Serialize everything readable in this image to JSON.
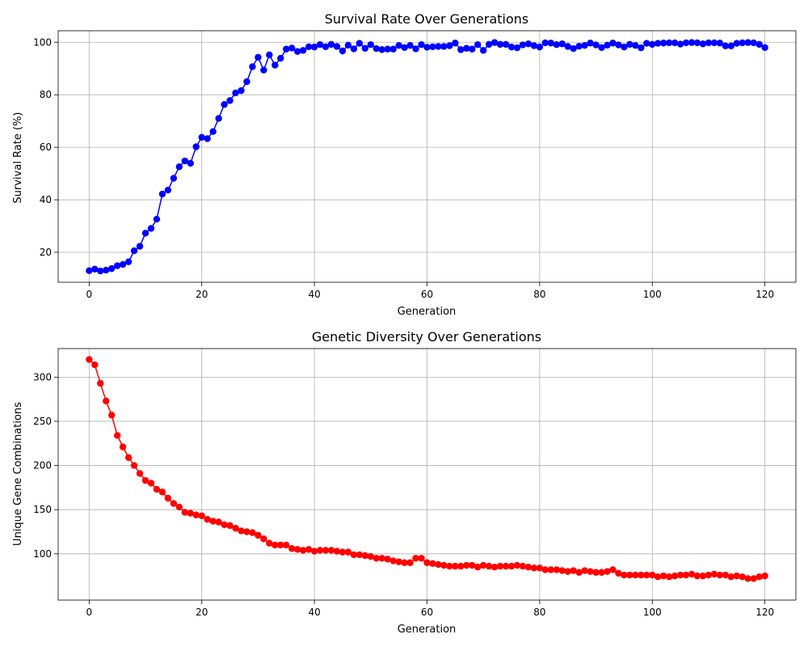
{
  "chart_data": [
    {
      "type": "line",
      "title": "Survival Rate Over Generations",
      "xlabel": "Generation",
      "ylabel": "Survival Rate (%)",
      "xlim": [
        -5.5,
        125.5
      ],
      "ylim": [
        8.6,
        104.4
      ],
      "xticks": [
        0,
        20,
        40,
        60,
        80,
        100,
        120
      ],
      "yticks": [
        20,
        40,
        60,
        80,
        100
      ],
      "grid": true,
      "color": "#0000ff",
      "x_start": 0,
      "x_step": 1,
      "values": [
        13.0,
        13.6,
        12.9,
        13.2,
        13.8,
        14.9,
        15.4,
        16.4,
        20.6,
        22.3,
        27.3,
        29.1,
        32.6,
        42.2,
        43.7,
        48.2,
        52.6,
        54.8,
        53.9,
        60.2,
        63.8,
        63.3,
        66.0,
        71.0,
        76.3,
        77.8,
        80.7,
        81.6,
        85.0,
        90.7,
        94.3,
        89.4,
        95.2,
        91.3,
        93.9,
        97.4,
        97.8,
        96.5,
        96.9,
        98.3,
        98.2,
        99.1,
        98.3,
        99.2,
        98.4,
        96.7,
        98.9,
        97.5,
        99.6,
        97.7,
        99.1,
        97.6,
        97.2,
        97.4,
        97.4,
        98.8,
        98.0,
        98.8,
        97.5,
        99.1,
        98.1,
        98.3,
        98.4,
        98.4,
        98.7,
        99.7,
        97.2,
        97.7,
        97.4,
        99.1,
        96.9,
        99.2,
        99.9,
        99.2,
        99.2,
        98.2,
        97.9,
        99.0,
        99.4,
        98.7,
        98.2,
        99.8,
        99.7,
        99.1,
        99.4,
        98.4,
        97.6,
        98.5,
        98.8,
        99.7,
        99.0,
        98.0,
        98.9,
        99.7,
        99.0,
        98.2,
        99.2,
        98.8,
        97.9,
        99.6,
        99.2,
        99.6,
        99.7,
        99.8,
        99.8,
        99.3,
        99.8,
        99.9,
        99.8,
        99.4,
        99.8,
        99.8,
        99.7,
        98.6,
        98.6,
        99.6,
        99.8,
        99.9,
        99.8,
        99.2,
        98.0
      ]
    },
    {
      "type": "line",
      "title": "Genetic Diversity Over Generations",
      "xlabel": "Generation",
      "ylabel": "Unique Gene Combinations",
      "xlim": [
        -5.5,
        125.5
      ],
      "ylim": [
        47.65,
        332.35
      ],
      "xticks": [
        0,
        20,
        40,
        60,
        80,
        100,
        120
      ],
      "yticks": [
        100,
        150,
        200,
        250,
        300
      ],
      "grid": true,
      "color": "#ff0000",
      "x_start": 0,
      "x_step": 1,
      "values": [
        320,
        314,
        293,
        273,
        257,
        234,
        221,
        209,
        200,
        191,
        183,
        180,
        173,
        170,
        163,
        157,
        153,
        147,
        146,
        144,
        143,
        139,
        137,
        136,
        133,
        132,
        129,
        126,
        125,
        124,
        121,
        117,
        112,
        110,
        110,
        110,
        106,
        105,
        104,
        105,
        103,
        104,
        104,
        104,
        103,
        102,
        102,
        99,
        99,
        98,
        97,
        95,
        95,
        94,
        92,
        91,
        90,
        90,
        95,
        95,
        90,
        89,
        88,
        87,
        86,
        86,
        86,
        87,
        87,
        85,
        87,
        86,
        85,
        86,
        86,
        86,
        87,
        86,
        85,
        84,
        84,
        82,
        82,
        82,
        81,
        80,
        81,
        79,
        81,
        80,
        79,
        79,
        80,
        82,
        78,
        76,
        76,
        76,
        76,
        76,
        76,
        74,
        75,
        74,
        75,
        76,
        76,
        77,
        75,
        75,
        76,
        77,
        76,
        76,
        74,
        75,
        74,
        72,
        72,
        74,
        75
      ]
    }
  ]
}
